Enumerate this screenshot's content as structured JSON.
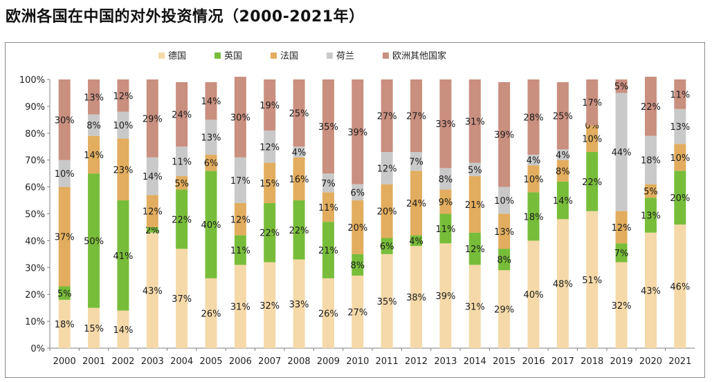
{
  "title": "欧洲各国在中国的对外投资情况（2000-2021年）",
  "colors": {
    "德国": "#F5D9A8",
    "英国": "#78BD3A",
    "法国": "#E2AD5E",
    "荷兰": "#C9C9C9",
    "欧洲其他国家": "#C98F7F"
  },
  "chart_data": {
    "type": "bar",
    "stacked": true,
    "percent_stacked": true,
    "title": "欧洲各国在中国的对外投资情况（2000-2021年）",
    "xlabel": "",
    "ylabel": "",
    "ylim": [
      0,
      100
    ],
    "yticks": [
      "0%",
      "10%",
      "20%",
      "30%",
      "40%",
      "50%",
      "60%",
      "70%",
      "80%",
      "90%",
      "100%"
    ],
    "legend_position": "top",
    "grid": false,
    "categories": [
      "2000",
      "2001",
      "2002",
      "2003",
      "2004",
      "2005",
      "2006",
      "2007",
      "2008",
      "2009",
      "2010",
      "2011",
      "2012",
      "2013",
      "2014",
      "2015",
      "2016",
      "2017",
      "2018",
      "2019",
      "2020",
      "2021"
    ],
    "series": [
      {
        "name": "德国",
        "values": [
          18,
          15,
          14,
          43,
          37,
          26,
          31,
          32,
          33,
          26,
          27,
          35,
          38,
          39,
          31,
          29,
          40,
          48,
          51,
          32,
          43,
          46
        ]
      },
      {
        "name": "英国",
        "values": [
          5,
          50,
          41,
          2,
          22,
          40,
          11,
          22,
          22,
          21,
          8,
          6,
          4,
          11,
          12,
          8,
          18,
          14,
          22,
          7,
          13,
          20
        ]
      },
      {
        "name": "法国",
        "values": [
          37,
          14,
          23,
          12,
          5,
          6,
          12,
          15,
          16,
          11,
          20,
          20,
          24,
          9,
          21,
          13,
          10,
          8,
          10,
          12,
          5,
          10
        ]
      },
      {
        "name": "荷兰",
        "values": [
          10,
          8,
          10,
          14,
          11,
          13,
          17,
          12,
          4,
          7,
          6,
          12,
          7,
          8,
          5,
          10,
          4,
          4,
          0,
          44,
          18,
          13
        ]
      },
      {
        "name": "欧洲其他国家",
        "values": [
          30,
          13,
          12,
          29,
          24,
          14,
          30,
          19,
          25,
          35,
          39,
          27,
          27,
          33,
          31,
          39,
          28,
          25,
          17,
          5,
          22,
          11
        ]
      }
    ],
    "value_label_suffix": "%"
  }
}
